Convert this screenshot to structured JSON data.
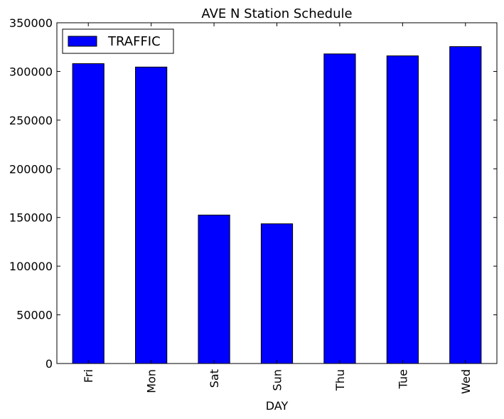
{
  "chart_data": {
    "type": "bar",
    "title": "AVE N Station Schedule",
    "xlabel": "DAY",
    "ylabel": "",
    "categories": [
      "Fri",
      "Mon",
      "Sat",
      "Sun",
      "Thu",
      "Tue",
      "Wed"
    ],
    "series": [
      {
        "name": "TRAFFIC",
        "color": "#0000ff",
        "values": [
          308000,
          304500,
          152500,
          143500,
          318000,
          316000,
          325500
        ]
      }
    ],
    "ylim": [
      0,
      350000
    ],
    "yticks": [
      0,
      50000,
      100000,
      150000,
      200000,
      250000,
      300000,
      350000
    ],
    "ytick_labels": [
      "0",
      "50000",
      "100000",
      "150000",
      "200000",
      "250000",
      "300000",
      "350000"
    ],
    "legend_position": "upper-left",
    "grid": false
  }
}
